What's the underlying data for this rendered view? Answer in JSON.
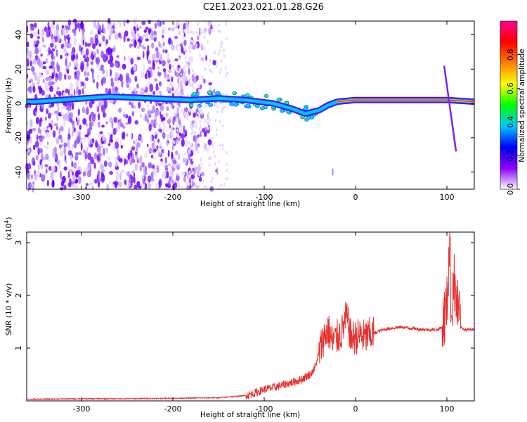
{
  "title": "C2E1.2023.021.01.28.G26",
  "chart_data": [
    {
      "type": "heatmap",
      "xlabel": "Height of straight line (km)",
      "ylabel": "Frequency (Hz)",
      "xlim": [
        -360,
        130
      ],
      "ylim": [
        -50,
        48
      ],
      "x_ticks": [
        -300,
        -200,
        -100,
        0,
        100
      ],
      "y_ticks": [
        -40,
        -20,
        0,
        20,
        40
      ],
      "colorbar": {
        "label": "Normalized spectral amplitude",
        "range": [
          0,
          1
        ],
        "ticks": [
          "0.0",
          "0.2",
          "0.4",
          "0.6",
          "0.8"
        ],
        "colors": [
          "#ffffff",
          "#8a00ff",
          "#0000ff",
          "#00c8ff",
          "#00ff00",
          "#ffff00",
          "#ff8000",
          "#ff0000",
          "#ff0090"
        ]
      },
      "ridge": [
        {
          "x": -350,
          "y": 1
        },
        {
          "x": -270,
          "y": 4
        },
        {
          "x": -180,
          "y": 2
        },
        {
          "x": -150,
          "y": 3
        },
        {
          "x": -120,
          "y": 2
        },
        {
          "x": -90,
          "y": 0
        },
        {
          "x": -70,
          "y": -3
        },
        {
          "x": -55,
          "y": -6
        },
        {
          "x": -40,
          "y": -4
        },
        {
          "x": -30,
          "y": -1
        },
        {
          "x": -20,
          "y": 1
        },
        {
          "x": 0,
          "y": 2
        },
        {
          "x": 50,
          "y": 2
        },
        {
          "x": 100,
          "y": 2
        },
        {
          "x": 130,
          "y": 1
        }
      ]
    },
    {
      "type": "line",
      "xlabel": "Height of straight line (km)",
      "ylabel": "SNR (10 * v/v)",
      "y_multiplier": "(x10",
      "y_multiplier_exp": "4",
      "y_multiplier_close": ")",
      "xlim": [
        -360,
        130
      ],
      "ylim": [
        0,
        3.2
      ],
      "x_ticks": [
        -300,
        -200,
        -100,
        0,
        100
      ],
      "y_ticks": [
        1,
        2,
        3
      ],
      "color": "#e83030",
      "series": [
        {
          "x": [
            -360,
            -300,
            -250,
            -200,
            -150,
            -120,
            -110,
            -100,
            -90,
            -80,
            -70,
            -60,
            -50,
            -45,
            -40,
            -35,
            -30,
            -25,
            -20,
            -15,
            -10,
            -5,
            0,
            5,
            10,
            20,
            30,
            40,
            50,
            60,
            70,
            80,
            90,
            95,
            100,
            103,
            105,
            107,
            110,
            115,
            120,
            130
          ],
          "y": [
            0.03,
            0.04,
            0.04,
            0.05,
            0.06,
            0.1,
            0.15,
            0.22,
            0.25,
            0.3,
            0.35,
            0.4,
            0.5,
            0.6,
            0.9,
            1.2,
            1.35,
            1.1,
            1.2,
            1.3,
            1.6,
            1.2,
            1.2,
            1.25,
            1.2,
            1.28,
            1.35,
            1.38,
            1.4,
            1.38,
            1.36,
            1.35,
            1.35,
            1.4,
            1.8,
            3.1,
            1.5,
            2.4,
            1.9,
            1.4,
            1.35,
            1.35
          ]
        }
      ]
    }
  ]
}
